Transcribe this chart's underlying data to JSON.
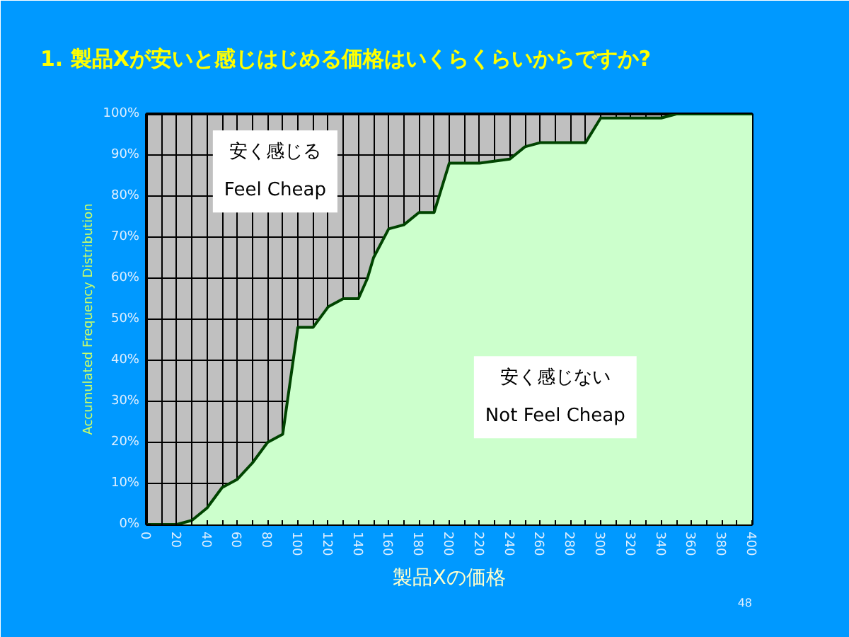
{
  "chart_data": {
    "type": "area",
    "title": "1. 製品Xが安いと感じはじめる価格はいくらくらいからですか?",
    "xlabel": "製品Xの価格",
    "ylabel": "Accumulated Frequency Distribution",
    "x": [
      0,
      10,
      20,
      30,
      40,
      50,
      60,
      70,
      80,
      90,
      100,
      110,
      120,
      130,
      140,
      146,
      150,
      160,
      170,
      180,
      190,
      200,
      220,
      240,
      250,
      260,
      280,
      290,
      300,
      320,
      340,
      350,
      360,
      380,
      400
    ],
    "series": [
      {
        "name": "安く感じない\nNot Feel Cheap",
        "color": "#ccffcc",
        "values": [
          0,
          0,
          0,
          1,
          4,
          9,
          11,
          15,
          20,
          22,
          48,
          48,
          53,
          55,
          55,
          60,
          65,
          72,
          73,
          76,
          76,
          88,
          88,
          89,
          92,
          93,
          93,
          93,
          99,
          99,
          99,
          100,
          100,
          100,
          100
        ]
      }
    ],
    "xlim": [
      0,
      400
    ],
    "ylim": [
      0,
      100
    ],
    "xticks": [
      0,
      {
        "value": 10,
        "label": null
      },
      20,
      {
        "value": 30,
        "label": null
      },
      40,
      {
        "value": 50,
        "label": null
      },
      60,
      {
        "value": 70,
        "label": null
      },
      80,
      {
        "value": 90,
        "label": null
      },
      100,
      {
        "value": 110,
        "label": null
      },
      120,
      {
        "value": 130,
        "label": null
      },
      140,
      {
        "value": 150,
        "label": null
      },
      160,
      {
        "value": 170,
        "label": null
      },
      180,
      {
        "value": 190,
        "label": null
      },
      200,
      {
        "value": 210,
        "label": null
      },
      220,
      {
        "value": 230,
        "label": null
      },
      240,
      {
        "value": 250,
        "label": null
      },
      260,
      {
        "value": 270,
        "label": null
      },
      280,
      {
        "value": 290,
        "label": null
      },
      300,
      {
        "value": 310,
        "label": null
      },
      320,
      {
        "value": 330,
        "label": null
      },
      340,
      {
        "value": 350,
        "label": null
      },
      360,
      {
        "value": 370,
        "label": null
      },
      380,
      {
        "value": 390,
        "label": null
      },
      400
    ],
    "yticks": [
      {
        "value": 0,
        "label": "0%"
      },
      {
        "value": 10,
        "label": "10%"
      },
      {
        "value": 20,
        "label": "20%"
      },
      {
        "value": 30,
        "label": "30%"
      },
      {
        "value": 40,
        "label": "40%"
      },
      {
        "value": 50,
        "label": "50%"
      },
      {
        "value": 60,
        "label": "60%"
      },
      {
        "value": 70,
        "label": "70%"
      },
      {
        "value": 80,
        "label": "80%"
      },
      {
        "value": 90,
        "label": "90%"
      },
      {
        "value": 100,
        "label": "100%"
      }
    ],
    "grid": true,
    "annotations": [
      "安く感じる",
      "Feel Cheap",
      "48"
    ]
  }
}
